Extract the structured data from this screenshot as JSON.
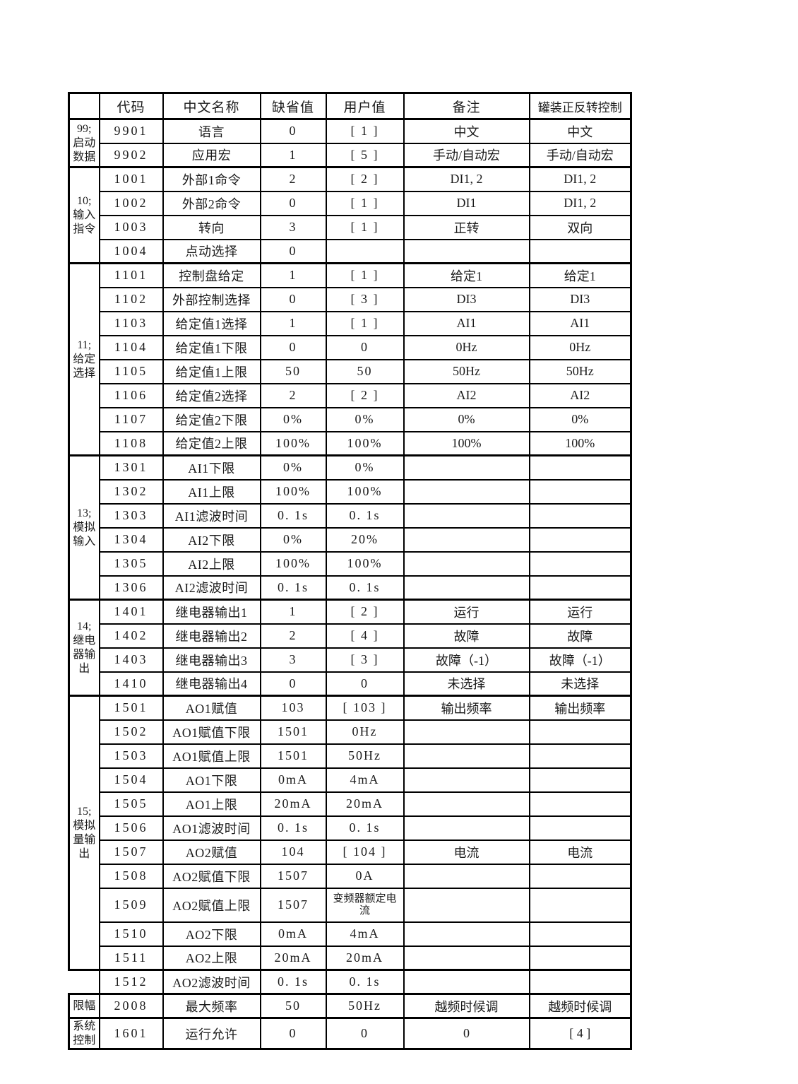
{
  "colors": {
    "background": "#ffffff",
    "border": "#000000",
    "text": "#1b1b1b"
  },
  "table": {
    "headers": [
      "",
      "代码",
      "中文名称",
      "缺省值",
      "用户值",
      "备注",
      "罐装正反转控制"
    ],
    "groups": [
      {
        "label": "99;\n启动\n数据",
        "rows": [
          {
            "code": "9901",
            "name": "语言",
            "def": "0",
            "user": "[ 1 ]",
            "remark": "中文",
            "ctrl": "中文"
          },
          {
            "code": "9902",
            "name": "应用宏",
            "def": "1",
            "user": "[ 5 ]",
            "remark": "手动/自动宏",
            "ctrl": "手动/自动宏"
          }
        ]
      },
      {
        "label": "10;\n输入\n指令",
        "rows": [
          {
            "code": "1001",
            "name": "外部1命令",
            "def": "2",
            "user": "[ 2 ]",
            "remark": "DI1, 2",
            "ctrl": "DI1, 2"
          },
          {
            "code": "1002",
            "name": "外部2命令",
            "def": "0",
            "user": "[ 1 ]",
            "remark": "DI1",
            "ctrl": "DI1, 2"
          },
          {
            "code": "1003",
            "name": "转向",
            "def": "3",
            "user": "[ 1 ]",
            "remark": "正转",
            "ctrl": "双向"
          },
          {
            "code": "1004",
            "name": "点动选择",
            "def": "0",
            "user": "",
            "remark": "",
            "ctrl": ""
          }
        ]
      },
      {
        "label": "11;\n给定\n选择",
        "rows": [
          {
            "code": "1101",
            "name": "控制盘给定",
            "def": "1",
            "user": "[ 1 ]",
            "remark": "给定1",
            "ctrl": "给定1"
          },
          {
            "code": "1102",
            "name": "外部控制选择",
            "def": "0",
            "user": "[ 3 ]",
            "remark": "DI3",
            "ctrl": "DI3"
          },
          {
            "code": "1103",
            "name": "给定值1选择",
            "def": "1",
            "user": "[ 1 ]",
            "remark": "AI1",
            "ctrl": "AI1"
          },
          {
            "code": "1104",
            "name": "给定值1下限",
            "def": "0",
            "user": "0",
            "remark": "0Hz",
            "ctrl": "0Hz"
          },
          {
            "code": "1105",
            "name": "给定值1上限",
            "def": "50",
            "user": "50",
            "remark": "50Hz",
            "ctrl": "50Hz"
          },
          {
            "code": "1106",
            "name": "给定值2选择",
            "def": "2",
            "user": "[ 2 ]",
            "remark": "AI2",
            "ctrl": "AI2"
          },
          {
            "code": "1107",
            "name": "给定值2下限",
            "def": "0%",
            "user": "0%",
            "remark": "0%",
            "ctrl": "0%"
          },
          {
            "code": "1108",
            "name": "给定值2上限",
            "def": "100%",
            "user": "100%",
            "remark": "100%",
            "ctrl": "100%"
          }
        ]
      },
      {
        "label": "13;\n模拟\n输入",
        "rows": [
          {
            "code": "1301",
            "name": "AI1下限",
            "def": "0%",
            "user": "0%",
            "remark": "",
            "ctrl": ""
          },
          {
            "code": "1302",
            "name": "AI1上限",
            "def": "100%",
            "user": "100%",
            "remark": "",
            "ctrl": ""
          },
          {
            "code": "1303",
            "name": "AI1滤波时间",
            "def": "0. 1s",
            "user": "0. 1s",
            "remark": "",
            "ctrl": ""
          },
          {
            "code": "1304",
            "name": "AI2下限",
            "def": "0%",
            "user": "20%",
            "remark": "",
            "ctrl": ""
          },
          {
            "code": "1305",
            "name": "AI2上限",
            "def": "100%",
            "user": "100%",
            "remark": "",
            "ctrl": ""
          },
          {
            "code": "1306",
            "name": "AI2滤波时间",
            "def": "0. 1s",
            "user": "0. 1s",
            "remark": "",
            "ctrl": ""
          }
        ]
      },
      {
        "label": "14;\n继电\n器输\n出",
        "rows": [
          {
            "code": "1401",
            "name": "继电器输出1",
            "def": "1",
            "user": "[ 2 ]",
            "remark": "运行",
            "ctrl": "运行"
          },
          {
            "code": "1402",
            "name": "继电器输出2",
            "def": "2",
            "user": "[ 4 ]",
            "remark": "故障",
            "ctrl": "故障"
          },
          {
            "code": "1403",
            "name": "继电器输出3",
            "def": "3",
            "user": "[ 3 ]",
            "remark": "故障（-1）",
            "ctrl": "故障（-1）"
          },
          {
            "code": "1410",
            "name": "继电器输出4",
            "def": "0",
            "user": "0",
            "remark": "未选择",
            "ctrl": "未选择"
          }
        ]
      },
      {
        "label": "15;\n模拟\n量输\n出",
        "rows": [
          {
            "code": "1501",
            "name": "AO1赋值",
            "def": "103",
            "user": "[ 103 ]",
            "remark": "输出频率",
            "ctrl": "输出频率"
          },
          {
            "code": "1502",
            "name": "AO1赋值下限",
            "def": "1501",
            "user": "0Hz",
            "remark": "",
            "ctrl": ""
          },
          {
            "code": "1503",
            "name": "AO1赋值上限",
            "def": "1501",
            "user": "50Hz",
            "remark": "",
            "ctrl": ""
          },
          {
            "code": "1504",
            "name": "AO1下限",
            "def": "0mA",
            "user": "4mA",
            "remark": "",
            "ctrl": ""
          },
          {
            "code": "1505",
            "name": "AO1上限",
            "def": "20mA",
            "user": "20mA",
            "remark": "",
            "ctrl": ""
          },
          {
            "code": "1506",
            "name": "AO1滤波时间",
            "def": "0. 1s",
            "user": "0. 1s",
            "remark": "",
            "ctrl": ""
          },
          {
            "code": "1507",
            "name": "AO2赋值",
            "def": "104",
            "user": "[ 104 ]",
            "remark": "电流",
            "ctrl": "电流"
          },
          {
            "code": "1508",
            "name": "AO2赋值下限",
            "def": "1507",
            "user": "0A",
            "remark": "",
            "ctrl": ""
          },
          {
            "code": "1509",
            "name": "AO2赋值上限",
            "def": "1507",
            "user": "变频器额定电流",
            "remark": "",
            "ctrl": ""
          },
          {
            "code": "1510",
            "name": "AO2下限",
            "def": "0mA",
            "user": "4mA",
            "remark": "",
            "ctrl": ""
          },
          {
            "code": "1511",
            "name": "AO2上限",
            "def": "20mA",
            "user": "20mA",
            "remark": "",
            "ctrl": ""
          }
        ]
      },
      {
        "label": null,
        "rows": [
          {
            "code": "1512",
            "name": "AO2滤波时间",
            "def": "0. 1s",
            "user": "0. 1s",
            "remark": "",
            "ctrl": ""
          }
        ]
      },
      {
        "label": "限幅",
        "rows": [
          {
            "code": "2008",
            "name": "最大频率",
            "def": "50",
            "user": "50Hz",
            "remark": "越频时候调",
            "ctrl": "越频时候调"
          }
        ]
      },
      {
        "label": "系统\n控制",
        "rows": [
          {
            "code": "1601",
            "name": "运行允许",
            "def": "0",
            "user": "0",
            "remark": "0",
            "ctrl": "[ 4 ]"
          }
        ]
      }
    ]
  }
}
